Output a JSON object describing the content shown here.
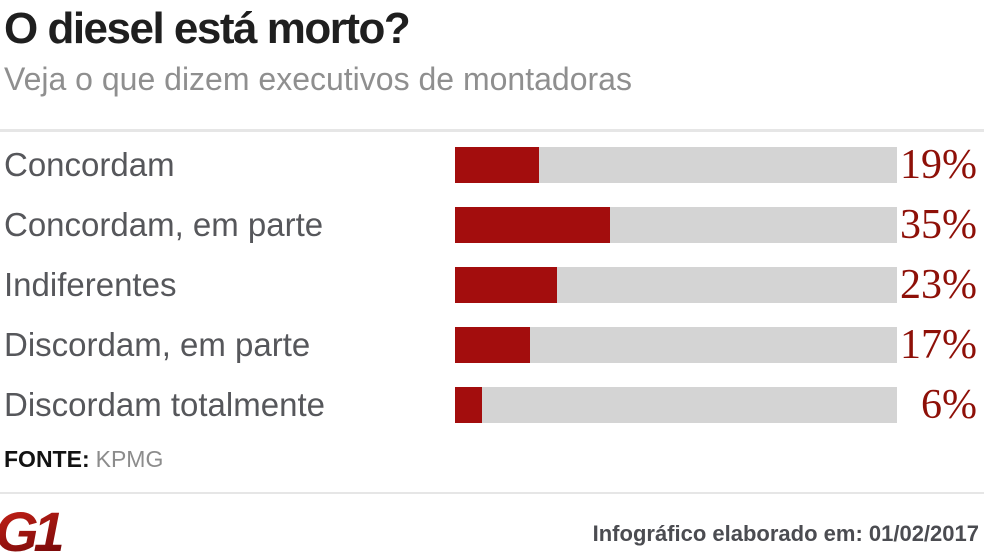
{
  "header": {
    "title": "O diesel está morto?",
    "subtitle": "Veja o que dizem executivos de montadoras"
  },
  "chart_data": {
    "type": "bar",
    "orientation": "horizontal",
    "title": "O diesel está morto?",
    "subtitle": "Veja o que dizem executivos de montadoras",
    "categories": [
      "Concordam",
      "Concordam, em parte",
      "Indiferentes",
      "Discordam, em parte",
      "Discordam totalmente"
    ],
    "values": [
      19,
      35,
      23,
      17,
      6
    ],
    "value_labels": [
      "19%",
      "35%",
      "23%",
      "17%",
      "6%"
    ],
    "unit": "%",
    "xlim": [
      0,
      100
    ],
    "grid": false,
    "legend": false,
    "bar_color": "#a30d0d",
    "track_color": "#d4d4d4",
    "value_label_color": "#8e1008",
    "category_label_color": "#56575b"
  },
  "source": {
    "label": "FONTE:",
    "value": "KPMG"
  },
  "footer": {
    "logo_text": "G1",
    "credit": "Infográfico elaborado em: 01/02/2017"
  },
  "colors": {
    "title": "#1f1f1f",
    "subtitle": "#8f8f8f",
    "divider": "#e6e6e6",
    "logo_gradient_top": "#cd2418",
    "logo_gradient_bottom": "#7c0a0a"
  }
}
